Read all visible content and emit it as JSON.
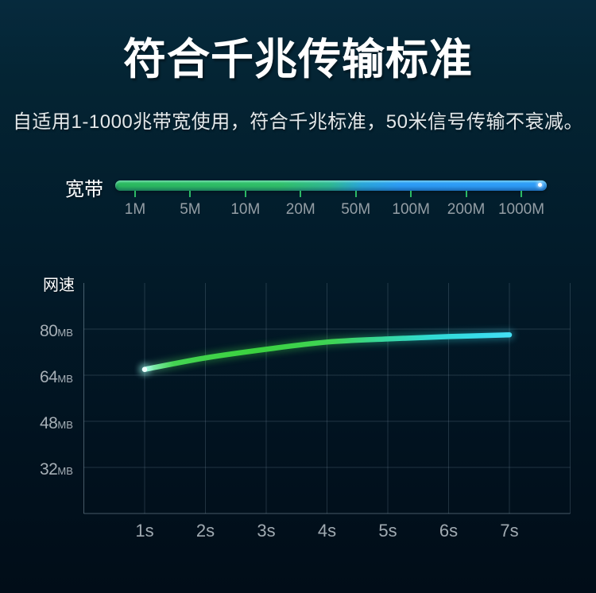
{
  "title": "符合千兆传输标准",
  "subtitle": "自适用1-1000兆带宽使用，符合千兆标准，50米信号传输不衰减。",
  "colors": {
    "background_top": "#062a3d",
    "background_bottom": "#010d18",
    "bar_green": "#2fbd66",
    "bar_blue": "#2f9df8",
    "tick_green": "#2cb964",
    "label_gray": "#9aa4ab",
    "curve_green": "#3ed14a",
    "curve_cyan": "#3fdef2"
  },
  "bandwidth": {
    "label": "宽带",
    "tick_labels": [
      "1M",
      "5M",
      "10M",
      "20M",
      "50M",
      "100M",
      "200M",
      "1000M"
    ]
  },
  "chart": {
    "ylabel": "网速"
  },
  "chart_data": [
    {
      "type": "area",
      "name": "bandwidth-scale",
      "title": "宽带",
      "categories": [
        "1M",
        "5M",
        "10M",
        "20M",
        "50M",
        "100M",
        "200M",
        "1000M"
      ],
      "note": "gradient capability bar from green (low bandwidth) to blue (1000M)"
    },
    {
      "type": "line",
      "name": "network-speed",
      "title": "网速",
      "x": [
        1,
        2,
        3,
        4,
        5,
        6,
        7
      ],
      "x_tick_labels": [
        "1s",
        "2s",
        "3s",
        "4s",
        "5s",
        "6s",
        "7s"
      ],
      "y_tick_values": [
        80,
        64,
        48,
        32
      ],
      "y_unit": "MB",
      "ylim": [
        16,
        96
      ],
      "grid": true,
      "legend": "none",
      "series": [
        {
          "name": "网速",
          "values": [
            66,
            70,
            73,
            75.5,
            76.6,
            77.4,
            78
          ]
        }
      ]
    }
  ]
}
